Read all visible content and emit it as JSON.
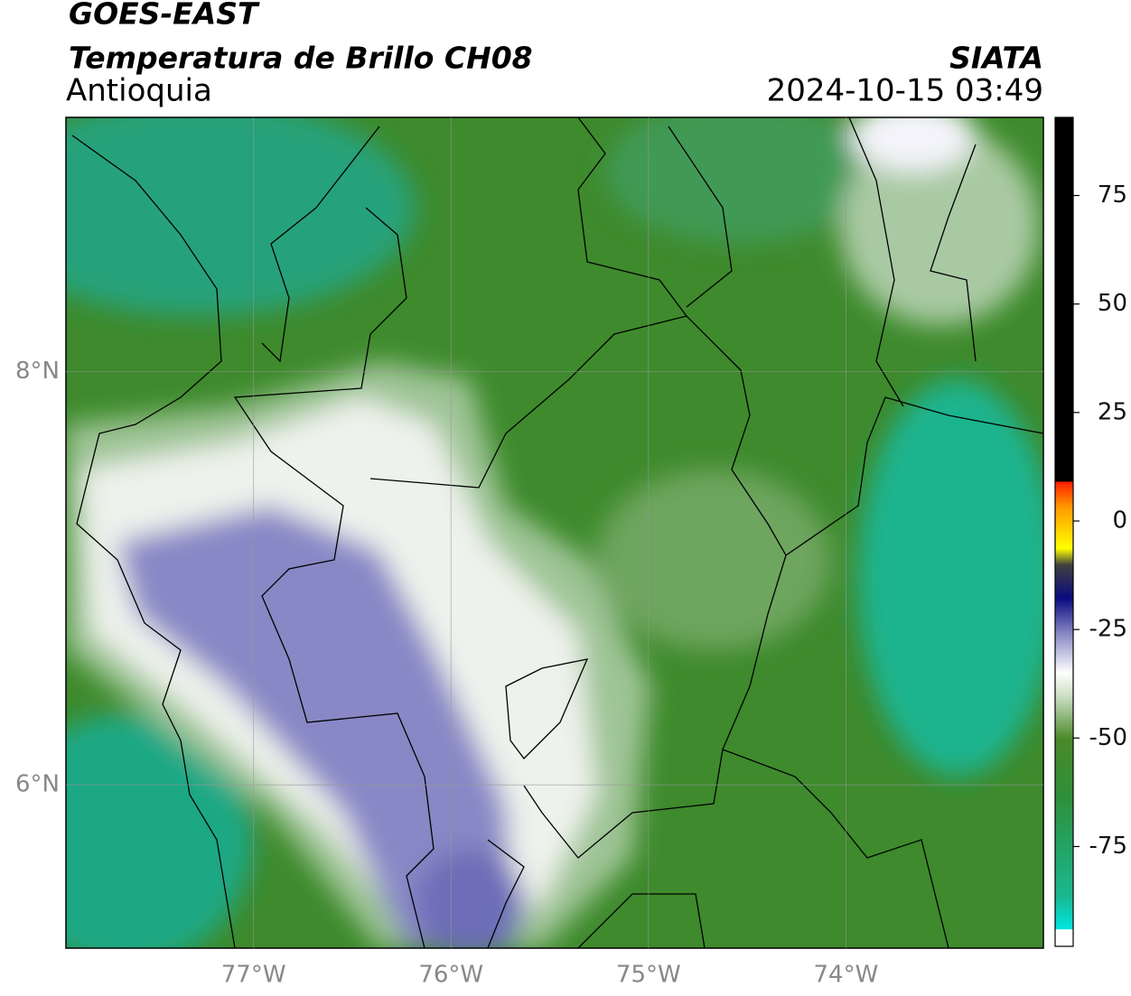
{
  "header": {
    "satellite": "GOES-EAST",
    "product": "Temperatura de Brillo CH08",
    "region": "Antioquia",
    "agency": "SIATA",
    "datetime": "2024-10-15 03:49"
  },
  "map": {
    "lon_range": [
      -77.95,
      -73.0
    ],
    "lat_range": [
      5.21,
      9.23
    ],
    "lon_ticks": [
      {
        "value": -77,
        "label": "77°W"
      },
      {
        "value": -76,
        "label": "76°W"
      },
      {
        "value": -75,
        "label": "75°W"
      },
      {
        "value": -74,
        "label": "74°W"
      }
    ],
    "lat_ticks": [
      {
        "value": 8,
        "label": "8°N"
      },
      {
        "value": 6,
        "label": "6°N"
      }
    ]
  },
  "colorbar": {
    "range": [
      -98,
      93
    ],
    "ticks": [
      75,
      50,
      25,
      0,
      -25,
      -50,
      -75
    ]
  }
}
